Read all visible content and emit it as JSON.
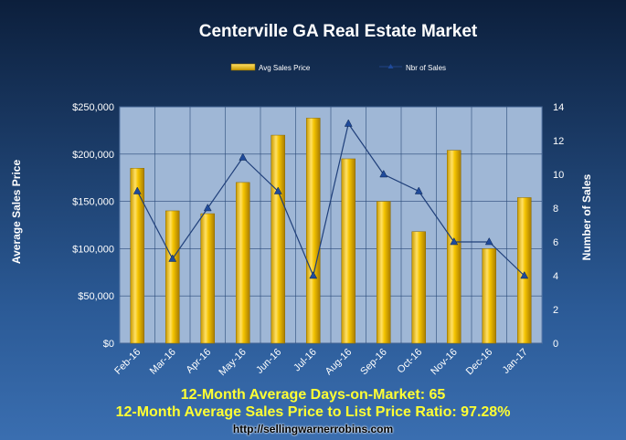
{
  "colors": {
    "bar_fill": "#f5c400",
    "bar_dark": "#b88a00",
    "line_color": "#1f3f7a",
    "plot_bg": "#9fb7d6",
    "footer_text": "#ffff33"
  },
  "chart_data": {
    "type": "bar",
    "title": "Centerville GA Real Estate Market",
    "categories": [
      "Feb-16",
      "Mar-16",
      "Apr-16",
      "May-16",
      "Jun-16",
      "Jul-16",
      "Aug-16",
      "Sep-16",
      "Oct-16",
      "Nov-16",
      "Dec-16",
      "Jan-17"
    ],
    "series": [
      {
        "name": "Avg Sales Price",
        "type": "bar",
        "axis": "left",
        "values": [
          185000,
          140000,
          137000,
          170000,
          220000,
          238000,
          195000,
          150000,
          118000,
          204000,
          100000,
          154000
        ]
      },
      {
        "name": "Nbr of Sales",
        "type": "line",
        "axis": "right",
        "values": [
          9,
          5,
          8,
          11,
          9,
          4,
          13,
          10,
          9,
          6,
          6,
          4
        ]
      }
    ],
    "ylabel": "Average Sales Price",
    "y2label": "Number of Sales",
    "ylim": [
      0,
      250000
    ],
    "y2lim": [
      0,
      14
    ],
    "yticks": [
      "$0",
      "$50,000",
      "$100,000",
      "$150,000",
      "$200,000",
      "$250,000"
    ],
    "y2ticks": [
      "0",
      "2",
      "4",
      "6",
      "8",
      "10",
      "12",
      "14"
    ],
    "legend_position": "top-center",
    "grid": true
  },
  "footer": {
    "days_on_market": "12-Month Average Days-on-Market: 65",
    "price_ratio": "12-Month Average Sales Price to List Price Ratio: 97.28%",
    "url": "http://sellingwarnerrobins.com"
  }
}
